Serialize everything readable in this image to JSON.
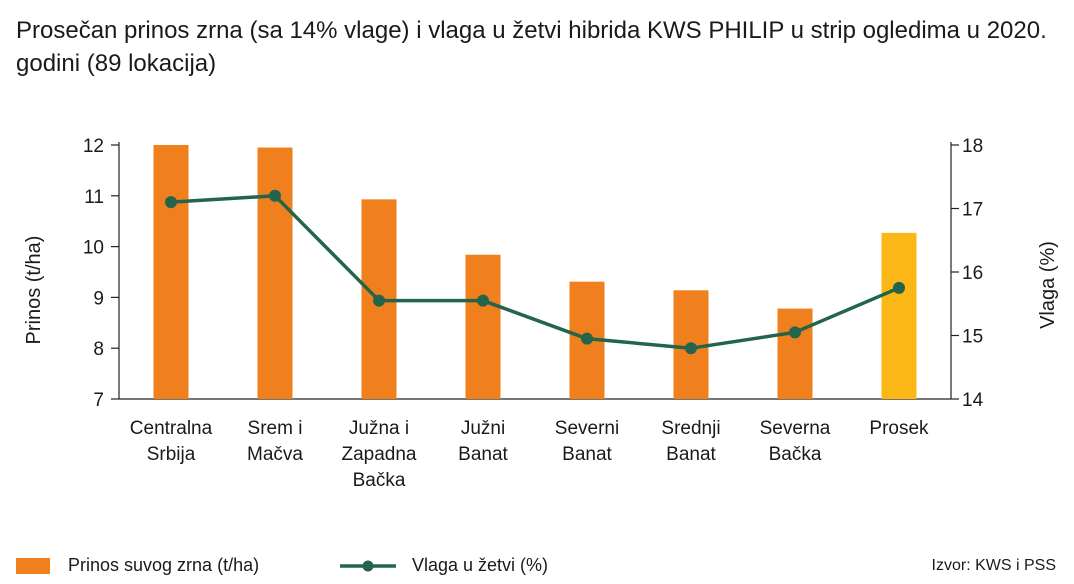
{
  "title": "Prosečan prinos zrna (sa 14% vlage) i vlaga u žetvi hibrida KWS PHILIP u strip ogledima u 2020. godini (89 lokacija)",
  "colors": {
    "bar": "#f07f1e",
    "bar_highlight": "#fbb715",
    "line": "#23654b",
    "axis": "#222222"
  },
  "legend": {
    "bar_label": "Prinos suvog zrna (t/ha)",
    "line_label": "Vlaga u žetvi (%)",
    "position": "bottom"
  },
  "source": "Izvor: KWS i PSS",
  "chart_data": {
    "type": "bar",
    "categories": [
      [
        "Centralna",
        "Srbija"
      ],
      [
        "Srem i",
        "Mačva"
      ],
      [
        "Južna i",
        "Zapadna",
        "Bačka"
      ],
      [
        "Južni",
        "Banat"
      ],
      [
        "Severni",
        "Banat"
      ],
      [
        "Srednji",
        "Banat"
      ],
      [
        "Severna",
        "Bačka"
      ],
      [
        "Prosek"
      ]
    ],
    "highlight_index": 7,
    "series": [
      {
        "name": "Prinos suvog zrna (t/ha)",
        "type": "bar",
        "axis": "left",
        "values": [
          12.0,
          11.95,
          10.93,
          9.84,
          9.31,
          9.14,
          8.78,
          10.27
        ]
      },
      {
        "name": "Vlaga u žetvi (%)",
        "type": "line",
        "axis": "right",
        "values": [
          17.1,
          17.2,
          15.55,
          15.55,
          14.95,
          14.8,
          15.05,
          15.75
        ]
      }
    ],
    "ylabel": "Prinos (t/ha)",
    "ylabel_right": "Vlaga (%)",
    "ylim": [
      7,
      12
    ],
    "yticks": [
      7,
      8,
      9,
      10,
      11,
      12
    ],
    "ylim_right": [
      14,
      18
    ],
    "yticks_right": [
      14,
      15,
      16,
      17,
      18
    ],
    "grid": false
  }
}
